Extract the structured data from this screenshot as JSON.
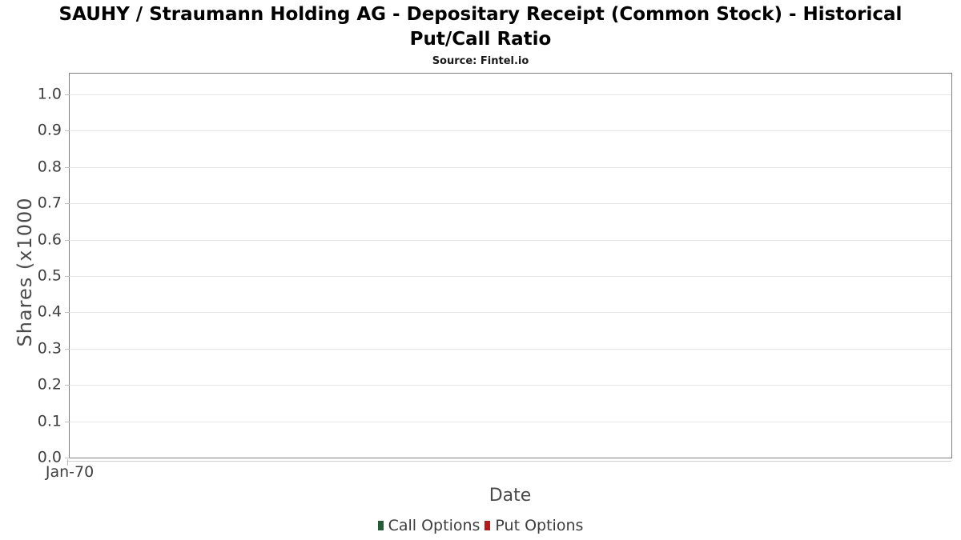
{
  "header": {
    "title_line1": "SAUHY / Straumann Holding AG - Depositary Receipt (Common Stock) - Historical",
    "title_line2": "Put/Call Ratio",
    "title_full": "SAUHY / Straumann Holding AG - Depositary Receipt (Common Stock) - Historical Put/Call Ratio",
    "source": "Source: Fintel.io"
  },
  "chart_data": {
    "type": "line",
    "title": "SAUHY / Straumann Holding AG - Depositary Receipt (Common Stock) - Historical Put/Call Ratio",
    "subtitle": "Source: Fintel.io",
    "xlabel": "Date",
    "ylabel": "Shares (x1000",
    "x_tick_labels": [
      "Jan-70"
    ],
    "y_ticks": [
      0.0,
      0.1,
      0.2,
      0.3,
      0.4,
      0.5,
      0.6,
      0.7,
      0.8,
      0.9,
      1.0
    ],
    "y_tick_labels": [
      "0.0",
      "0.1",
      "0.2",
      "0.3",
      "0.4",
      "0.5",
      "0.6",
      "0.7",
      "0.8",
      "0.9",
      "1.0"
    ],
    "ylim": [
      0,
      1.057
    ],
    "grid": "horizontal",
    "legend_position": "bottom",
    "plot_background": "#ffffff",
    "series": [
      {
        "name": "Call Options",
        "color": "#255c35",
        "values": []
      },
      {
        "name": "Put Options",
        "color": "#b01c1c",
        "values": []
      }
    ],
    "colors": {
      "title": "#000000",
      "source": "#1a1a1a",
      "plot_border": "#7f7f7f",
      "gridline": "#e6e6e6",
      "tick": "#c0c0c0",
      "axis_line": "#cfcfcf",
      "tick_label": "#3f3f3f",
      "axis_title": "#4a4a4a",
      "legend_text": "#3d3d3d"
    }
  }
}
